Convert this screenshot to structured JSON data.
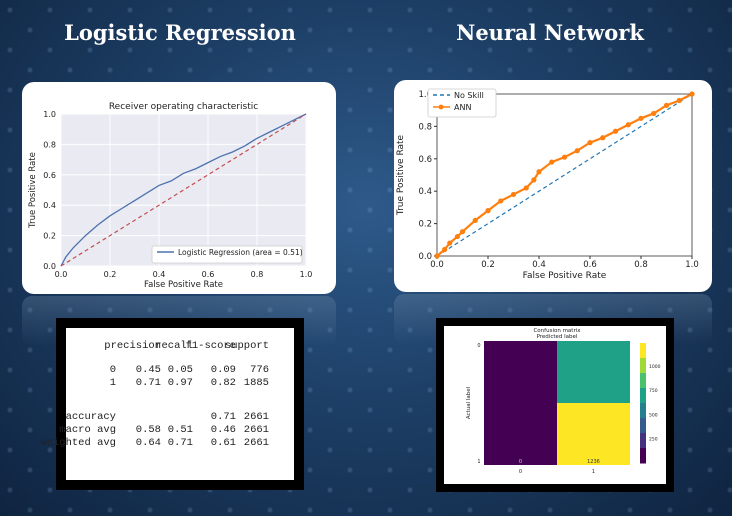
{
  "headings": {
    "left": "Logistic Regression",
    "right": "Neural Network"
  },
  "chart_data": [
    {
      "type": "line",
      "title": "Receiver operating characteristic",
      "xlabel": "False Positive Rate",
      "ylabel": "True Positive Rate",
      "xlim": [
        0,
        1.0
      ],
      "ylim": [
        0,
        1.0
      ],
      "xticks": [
        "0.0",
        "0.2",
        "0.4",
        "0.6",
        "0.8",
        "1.0"
      ],
      "yticks": [
        "0.0",
        "0.2",
        "0.4",
        "0.6",
        "0.8",
        "1.0"
      ],
      "grid": true,
      "legend_position": "bottom-right",
      "series": [
        {
          "name": "Logistic Regression (area = 0.51)",
          "color": "#4c72b0",
          "x": [
            0,
            0.02,
            0.05,
            0.1,
            0.15,
            0.2,
            0.25,
            0.3,
            0.35,
            0.4,
            0.45,
            0.5,
            0.55,
            0.6,
            0.65,
            0.7,
            0.75,
            0.8,
            0.85,
            0.9,
            0.95,
            1.0
          ],
          "y": [
            0,
            0.06,
            0.12,
            0.2,
            0.27,
            0.33,
            0.38,
            0.43,
            0.48,
            0.53,
            0.56,
            0.61,
            0.64,
            0.68,
            0.72,
            0.75,
            0.79,
            0.84,
            0.88,
            0.92,
            0.96,
            1.0
          ]
        },
        {
          "name": "",
          "color": "#c44e52",
          "dashed": true,
          "x": [
            0,
            1
          ],
          "y": [
            0,
            1
          ]
        }
      ]
    },
    {
      "type": "line",
      "xlabel": "False Positive Rate",
      "ylabel": "True Positive Rate",
      "xlim": [
        0,
        1.0
      ],
      "ylim": [
        0,
        1.0
      ],
      "xticks": [
        "0.0",
        "0.2",
        "0.4",
        "0.6",
        "0.8",
        "1.0"
      ],
      "yticks": [
        "0.0",
        "0.2",
        "0.4",
        "0.6",
        "0.8",
        "1.0"
      ],
      "grid": false,
      "legend_position": "top-left",
      "series": [
        {
          "name": "No Skill",
          "color": "#1f77b4",
          "dashed": true,
          "x": [
            0,
            1
          ],
          "y": [
            0,
            1
          ]
        },
        {
          "name": "ANN",
          "color": "#ff7f0e",
          "x": [
            0,
            0.03,
            0.05,
            0.08,
            0.1,
            0.15,
            0.2,
            0.25,
            0.3,
            0.35,
            0.38,
            0.4,
            0.45,
            0.5,
            0.55,
            0.6,
            0.65,
            0.7,
            0.75,
            0.8,
            0.85,
            0.9,
            0.95,
            1.0
          ],
          "y": [
            0,
            0.04,
            0.08,
            0.12,
            0.15,
            0.22,
            0.28,
            0.34,
            0.38,
            0.42,
            0.47,
            0.52,
            0.58,
            0.61,
            0.65,
            0.7,
            0.73,
            0.77,
            0.81,
            0.85,
            0.88,
            0.93,
            0.96,
            1.0
          ]
        }
      ]
    },
    {
      "type": "heatmap",
      "title": "Confusion matrix",
      "xlabel": "Predicted label",
      "ylabel": "Actual label",
      "row_labels": [
        "0",
        "1"
      ],
      "col_labels": [
        "0",
        "1"
      ],
      "values": [
        [
          0,
          776
        ],
        [
          0,
          1236
        ]
      ],
      "cell_text": [
        [
          "",
          ""
        ],
        [
          "0",
          "1236"
        ]
      ],
      "colorbar_ticks": [
        "250",
        "500",
        "750",
        "1000"
      ],
      "vmin": 0,
      "vmax": 1236,
      "colormap": "viridis"
    },
    {
      "type": "table",
      "columns": [
        "",
        "precision",
        "recall",
        "f1-score",
        "support"
      ],
      "rows": [
        [
          "0",
          "0.45",
          "0.05",
          "0.09",
          "776"
        ],
        [
          "1",
          "0.71",
          "0.97",
          "0.82",
          "1885"
        ],
        [
          "",
          "",
          "",
          "",
          ""
        ],
        [
          "accuracy",
          "",
          "",
          "0.71",
          "2661"
        ],
        [
          "macro avg",
          "0.58",
          "0.51",
          "0.46",
          "2661"
        ],
        [
          "weighted avg",
          "0.64",
          "0.71",
          "0.61",
          "2661"
        ]
      ]
    }
  ]
}
